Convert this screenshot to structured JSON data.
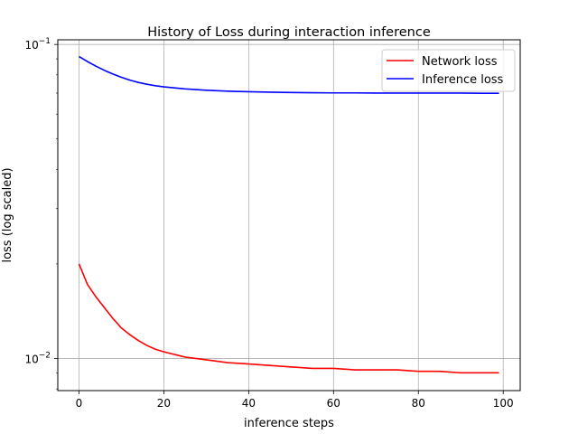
{
  "chart_data": {
    "type": "line",
    "title": "History of Loss during interaction inference",
    "xlabel": "inference steps",
    "ylabel": "loss (log scaled)",
    "yscale": "log",
    "xlim": [
      -5,
      104
    ],
    "ylim": [
      0.0079,
      0.1035
    ],
    "grid": true,
    "legend_position": "top-right",
    "x_ticks": [
      {
        "value": 0,
        "label": "0"
      },
      {
        "value": 20,
        "label": "20"
      },
      {
        "value": 40,
        "label": "40"
      },
      {
        "value": 60,
        "label": "60"
      },
      {
        "value": 80,
        "label": "80"
      },
      {
        "value": 100,
        "label": "100"
      }
    ],
    "y_ticks": [
      {
        "value": 0.01,
        "base": "10",
        "exp": "−2"
      },
      {
        "value": 0.1,
        "base": "10",
        "exp": "−1"
      }
    ],
    "series": [
      {
        "name": "Network loss",
        "color": "#ff0000",
        "x": [
          0,
          2,
          4,
          6,
          8,
          10,
          12,
          14,
          16,
          18,
          20,
          25,
          30,
          35,
          40,
          45,
          50,
          55,
          60,
          65,
          70,
          75,
          80,
          85,
          90,
          95,
          99
        ],
        "y": [
          0.02,
          0.0172,
          0.0157,
          0.0145,
          0.0134,
          0.0125,
          0.0119,
          0.0114,
          0.011,
          0.0107,
          0.0105,
          0.0101,
          0.0099,
          0.0097,
          0.0096,
          0.0095,
          0.0094,
          0.0093,
          0.0093,
          0.0092,
          0.0092,
          0.0092,
          0.0091,
          0.0091,
          0.009,
          0.009,
          0.009
        ]
      },
      {
        "name": "Inference loss",
        "color": "#0000ff",
        "x": [
          0,
          2,
          4,
          6,
          8,
          10,
          12,
          14,
          16,
          18,
          20,
          25,
          30,
          35,
          40,
          45,
          50,
          55,
          60,
          65,
          70,
          75,
          80,
          85,
          90,
          95,
          99
        ],
        "y": [
          0.0915,
          0.0882,
          0.0853,
          0.0827,
          0.0805,
          0.0786,
          0.077,
          0.0757,
          0.0747,
          0.0739,
          0.0733,
          0.0722,
          0.0715,
          0.071,
          0.0707,
          0.0705,
          0.0703,
          0.0702,
          0.0701,
          0.0701,
          0.07,
          0.07,
          0.07,
          0.07,
          0.07,
          0.0699,
          0.0699
        ]
      }
    ]
  }
}
